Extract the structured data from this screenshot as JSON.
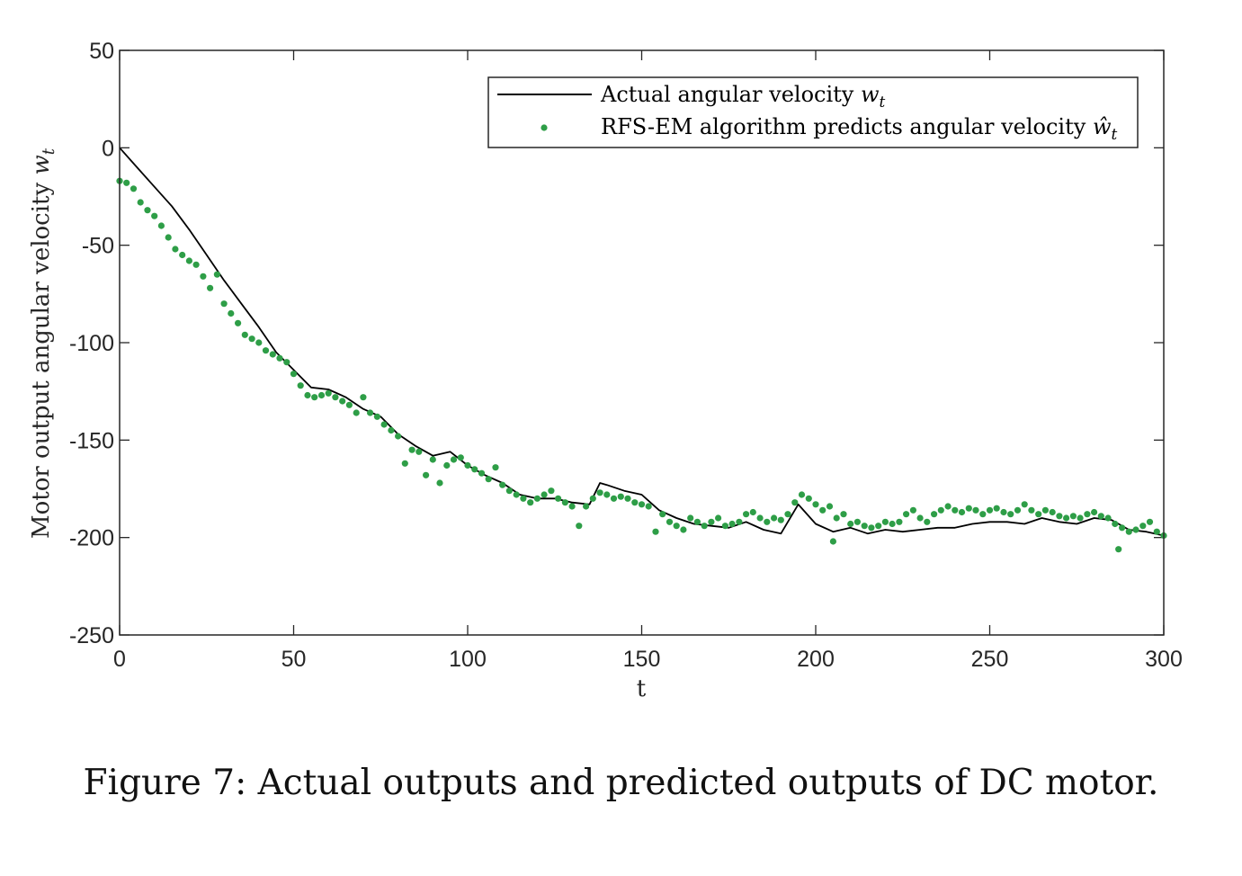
{
  "caption": "Figure 7: Actual outputs and predicted outputs of DC motor.",
  "chart_data": {
    "type": "line",
    "title": "",
    "xlabel": "t",
    "ylabel": "Motor output angular velocity w_t",
    "xlim": [
      0,
      300
    ],
    "ylim": [
      -250,
      50
    ],
    "xticks": [
      0,
      50,
      100,
      150,
      200,
      250,
      300
    ],
    "yticks": [
      50,
      0,
      -50,
      -100,
      -150,
      -200,
      -250
    ],
    "grid": false,
    "legend_position": "top-right",
    "colors": {
      "actual": "#000000",
      "predicted": "#2e9e47",
      "axes": "#262626"
    },
    "series": [
      {
        "name": "Actual angular velocity w_t",
        "style": "line",
        "points": [
          [
            0,
            0
          ],
          [
            5,
            -10
          ],
          [
            10,
            -20
          ],
          [
            15,
            -30
          ],
          [
            20,
            -42
          ],
          [
            25,
            -55
          ],
          [
            30,
            -68
          ],
          [
            35,
            -80
          ],
          [
            40,
            -92
          ],
          [
            45,
            -105
          ],
          [
            50,
            -114
          ],
          [
            55,
            -123
          ],
          [
            60,
            -124
          ],
          [
            65,
            -128
          ],
          [
            70,
            -134
          ],
          [
            75,
            -138
          ],
          [
            80,
            -147
          ],
          [
            85,
            -153
          ],
          [
            90,
            -158
          ],
          [
            95,
            -156
          ],
          [
            100,
            -163
          ],
          [
            105,
            -168
          ],
          [
            110,
            -172
          ],
          [
            115,
            -178
          ],
          [
            120,
            -180
          ],
          [
            125,
            -180
          ],
          [
            130,
            -182
          ],
          [
            135,
            -183
          ],
          [
            138,
            -172
          ],
          [
            140,
            -173
          ],
          [
            145,
            -176
          ],
          [
            150,
            -178
          ],
          [
            155,
            -186
          ],
          [
            160,
            -190
          ],
          [
            165,
            -193
          ],
          [
            170,
            -194
          ],
          [
            175,
            -195
          ],
          [
            180,
            -192
          ],
          [
            185,
            -196
          ],
          [
            190,
            -198
          ],
          [
            195,
            -183
          ],
          [
            200,
            -193
          ],
          [
            205,
            -197
          ],
          [
            210,
            -195
          ],
          [
            215,
            -198
          ],
          [
            220,
            -196
          ],
          [
            225,
            -197
          ],
          [
            230,
            -196
          ],
          [
            235,
            -195
          ],
          [
            240,
            -195
          ],
          [
            245,
            -193
          ],
          [
            250,
            -192
          ],
          [
            255,
            -192
          ],
          [
            260,
            -193
          ],
          [
            265,
            -190
          ],
          [
            270,
            -192
          ],
          [
            275,
            -193
          ],
          [
            280,
            -190
          ],
          [
            285,
            -191
          ],
          [
            290,
            -196
          ],
          [
            295,
            -197
          ],
          [
            300,
            -199
          ]
        ]
      },
      {
        "name": "RFS-EM algorithm predicts angular velocity ŵ_t",
        "style": "markers",
        "points": [
          [
            0,
            -17
          ],
          [
            2,
            -18
          ],
          [
            4,
            -21
          ],
          [
            6,
            -28
          ],
          [
            8,
            -32
          ],
          [
            10,
            -35
          ],
          [
            12,
            -40
          ],
          [
            14,
            -46
          ],
          [
            16,
            -52
          ],
          [
            18,
            -55
          ],
          [
            20,
            -58
          ],
          [
            22,
            -60
          ],
          [
            24,
            -66
          ],
          [
            26,
            -72
          ],
          [
            28,
            -65
          ],
          [
            30,
            -80
          ],
          [
            32,
            -85
          ],
          [
            34,
            -90
          ],
          [
            36,
            -96
          ],
          [
            38,
            -98
          ],
          [
            40,
            -100
          ],
          [
            42,
            -104
          ],
          [
            44,
            -106
          ],
          [
            46,
            -108
          ],
          [
            48,
            -110
          ],
          [
            50,
            -116
          ],
          [
            52,
            -122
          ],
          [
            54,
            -127
          ],
          [
            56,
            -128
          ],
          [
            58,
            -127
          ],
          [
            60,
            -126
          ],
          [
            62,
            -128
          ],
          [
            64,
            -130
          ],
          [
            66,
            -132
          ],
          [
            68,
            -136
          ],
          [
            70,
            -128
          ],
          [
            72,
            -136
          ],
          [
            74,
            -138
          ],
          [
            76,
            -142
          ],
          [
            78,
            -145
          ],
          [
            80,
            -148
          ],
          [
            82,
            -162
          ],
          [
            84,
            -155
          ],
          [
            86,
            -156
          ],
          [
            88,
            -168
          ],
          [
            90,
            -160
          ],
          [
            92,
            -172
          ],
          [
            94,
            -163
          ],
          [
            96,
            -160
          ],
          [
            98,
            -159
          ],
          [
            100,
            -163
          ],
          [
            102,
            -165
          ],
          [
            104,
            -167
          ],
          [
            106,
            -170
          ],
          [
            108,
            -164
          ],
          [
            110,
            -173
          ],
          [
            112,
            -176
          ],
          [
            114,
            -178
          ],
          [
            116,
            -180
          ],
          [
            118,
            -182
          ],
          [
            120,
            -180
          ],
          [
            122,
            -178
          ],
          [
            124,
            -176
          ],
          [
            126,
            -180
          ],
          [
            128,
            -182
          ],
          [
            130,
            -184
          ],
          [
            132,
            -194
          ],
          [
            134,
            -184
          ],
          [
            136,
            -180
          ],
          [
            138,
            -177
          ],
          [
            140,
            -178
          ],
          [
            142,
            -180
          ],
          [
            144,
            -179
          ],
          [
            146,
            -180
          ],
          [
            148,
            -182
          ],
          [
            150,
            -183
          ],
          [
            152,
            -184
          ],
          [
            154,
            -197
          ],
          [
            156,
            -188
          ],
          [
            158,
            -192
          ],
          [
            160,
            -194
          ],
          [
            162,
            -196
          ],
          [
            164,
            -190
          ],
          [
            166,
            -192
          ],
          [
            168,
            -194
          ],
          [
            170,
            -192
          ],
          [
            172,
            -190
          ],
          [
            174,
            -194
          ],
          [
            176,
            -193
          ],
          [
            178,
            -192
          ],
          [
            180,
            -188
          ],
          [
            182,
            -187
          ],
          [
            184,
            -190
          ],
          [
            186,
            -192
          ],
          [
            188,
            -190
          ],
          [
            190,
            -191
          ],
          [
            192,
            -188
          ],
          [
            194,
            -182
          ],
          [
            196,
            -178
          ],
          [
            198,
            -180
          ],
          [
            200,
            -183
          ],
          [
            202,
            -186
          ],
          [
            204,
            -184
          ],
          [
            205,
            -202
          ],
          [
            206,
            -190
          ],
          [
            208,
            -188
          ],
          [
            210,
            -193
          ],
          [
            212,
            -192
          ],
          [
            214,
            -194
          ],
          [
            216,
            -195
          ],
          [
            218,
            -194
          ],
          [
            220,
            -192
          ],
          [
            222,
            -193
          ],
          [
            224,
            -192
          ],
          [
            226,
            -188
          ],
          [
            228,
            -186
          ],
          [
            230,
            -190
          ],
          [
            232,
            -192
          ],
          [
            234,
            -188
          ],
          [
            236,
            -186
          ],
          [
            238,
            -184
          ],
          [
            240,
            -186
          ],
          [
            242,
            -187
          ],
          [
            244,
            -185
          ],
          [
            246,
            -186
          ],
          [
            248,
            -188
          ],
          [
            250,
            -186
          ],
          [
            252,
            -185
          ],
          [
            254,
            -187
          ],
          [
            256,
            -188
          ],
          [
            258,
            -186
          ],
          [
            260,
            -183
          ],
          [
            262,
            -186
          ],
          [
            264,
            -188
          ],
          [
            266,
            -186
          ],
          [
            268,
            -187
          ],
          [
            270,
            -189
          ],
          [
            272,
            -190
          ],
          [
            274,
            -189
          ],
          [
            276,
            -190
          ],
          [
            278,
            -188
          ],
          [
            280,
            -187
          ],
          [
            282,
            -189
          ],
          [
            284,
            -190
          ],
          [
            286,
            -193
          ],
          [
            287,
            -206
          ],
          [
            288,
            -195
          ],
          [
            290,
            -197
          ],
          [
            292,
            -196
          ],
          [
            294,
            -194
          ],
          [
            296,
            -192
          ],
          [
            298,
            -197
          ],
          [
            300,
            -199
          ]
        ]
      }
    ]
  }
}
